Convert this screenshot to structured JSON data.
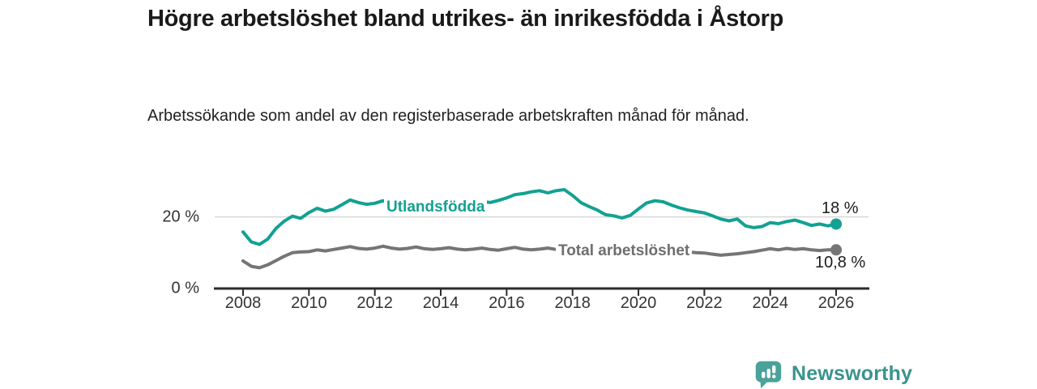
{
  "header": {
    "title": "Högre arbetslöshet bland utrikes- än inrikesfödda i Åstorp",
    "subtitle": "Arbetssökande som andel av den registerbaserade arbetskraften månad för månad."
  },
  "footer": {
    "brand": "Newsworthy",
    "logo_icon": "bar-chart-speech-bubble-icon",
    "icon_color": "#4aa29b",
    "wordmark_color": "#3a938d"
  },
  "colors": {
    "grid": "#d8d8d8",
    "axis": "#2b2b2b",
    "tick_text": "#333333",
    "end_label_text": "#1c1c1c"
  },
  "chart_data": {
    "type": "line",
    "title": "Högre arbetslöshet bland utrikes- än inrikesfödda i Åstorp",
    "subtitle": "Arbetssökande som andel av den registerbaserade arbetskraften månad för månad.",
    "xlabel": "",
    "ylabel": "",
    "grid": "horizontal-20-only",
    "legend_position": "inline-line-labels",
    "xlim": [
      2006.9,
      2027.0
    ],
    "ylim": [
      0,
      30
    ],
    "x_ticks": [
      2008,
      2010,
      2012,
      2014,
      2016,
      2018,
      2020,
      2022,
      2024,
      2026
    ],
    "y_ticks": [
      {
        "value": 20,
        "label": "20 %"
      },
      {
        "value": 0,
        "label": "0 %"
      }
    ],
    "x_unit": "year (monthly series)",
    "y_unit": "percent of registered labour force",
    "x": [
      2008.0,
      2008.25,
      2008.5,
      2008.75,
      2009.0,
      2009.25,
      2009.5,
      2009.75,
      2010.0,
      2010.25,
      2010.5,
      2010.75,
      2011.0,
      2011.25,
      2011.5,
      2011.75,
      2012.0,
      2012.25,
      2012.5,
      2012.75,
      2013.0,
      2013.25,
      2013.5,
      2013.75,
      2014.0,
      2014.25,
      2014.5,
      2014.75,
      2015.0,
      2015.25,
      2015.5,
      2015.75,
      2016.0,
      2016.25,
      2016.5,
      2016.75,
      2017.0,
      2017.25,
      2017.5,
      2017.75,
      2018.0,
      2018.25,
      2018.5,
      2018.75,
      2019.0,
      2019.25,
      2019.5,
      2019.75,
      2020.0,
      2020.25,
      2020.5,
      2020.75,
      2021.0,
      2021.25,
      2021.5,
      2021.75,
      2022.0,
      2022.25,
      2022.5,
      2022.75,
      2023.0,
      2023.25,
      2023.5,
      2023.75,
      2024.0,
      2024.25,
      2024.5,
      2024.75,
      2025.0,
      2025.25,
      2025.5,
      2025.75,
      2026.0
    ],
    "series": [
      {
        "name": "Utlandsfödda",
        "color": "#12a192",
        "end_label": "18 %",
        "end_value": 18.0,
        "values": [
          15.8,
          13.0,
          12.3,
          13.8,
          16.8,
          18.8,
          20.2,
          19.6,
          21.2,
          22.4,
          21.6,
          22.1,
          23.4,
          24.7,
          24.0,
          23.5,
          23.8,
          24.5,
          23.7,
          23.1,
          23.4,
          24.0,
          23.4,
          23.0,
          23.0,
          23.4,
          23.2,
          23.5,
          23.8,
          24.3,
          24.0,
          24.6,
          25.3,
          26.2,
          26.5,
          27.0,
          27.3,
          26.7,
          27.3,
          27.6,
          26.0,
          24.0,
          22.9,
          21.9,
          20.6,
          20.3,
          19.7,
          20.4,
          22.2,
          23.9,
          24.5,
          24.2,
          23.3,
          22.5,
          21.9,
          21.5,
          21.1,
          20.3,
          19.4,
          18.9,
          19.4,
          17.5,
          17.0,
          17.3,
          18.4,
          18.1,
          18.7,
          19.1,
          18.4,
          17.6,
          18.0,
          17.5,
          18.0
        ]
      },
      {
        "name": "Total arbetslöshet",
        "color": "#757575",
        "end_label": "10,8 %",
        "end_value": 10.8,
        "values": [
          7.7,
          6.2,
          5.8,
          6.6,
          7.8,
          9.0,
          10.0,
          10.2,
          10.3,
          10.8,
          10.5,
          10.9,
          11.3,
          11.7,
          11.2,
          11.0,
          11.3,
          11.8,
          11.3,
          11.0,
          11.2,
          11.6,
          11.1,
          10.9,
          11.1,
          11.4,
          11.0,
          10.8,
          11.0,
          11.3,
          10.9,
          10.7,
          11.1,
          11.5,
          11.0,
          10.8,
          11.0,
          11.3,
          10.9,
          10.6,
          10.7,
          10.4,
          10.1,
          9.9,
          10.0,
          9.8,
          9.6,
          9.9,
          10.5,
          11.3,
          11.5,
          11.2,
          10.9,
          10.5,
          10.2,
          10.0,
          9.9,
          9.6,
          9.3,
          9.5,
          9.7,
          10.0,
          10.3,
          10.7,
          11.1,
          10.8,
          11.2,
          10.9,
          11.1,
          10.8,
          10.6,
          10.8,
          10.8
        ]
      }
    ]
  }
}
